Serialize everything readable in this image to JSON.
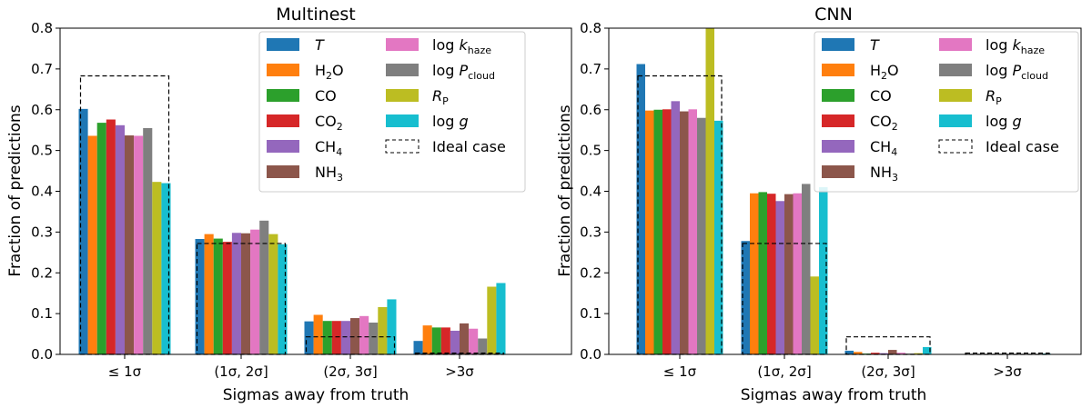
{
  "chart_data": [
    {
      "type": "bar",
      "title": "Multinest",
      "xlabel": "Sigmas away from truth",
      "ylabel": "Fraction of predictions",
      "ylim": [
        0,
        0.8
      ],
      "yticks": [
        "0.0",
        "0.1",
        "0.2",
        "0.3",
        "0.4",
        "0.5",
        "0.6",
        "0.7",
        "0.8"
      ],
      "categories": [
        "≤ 1σ",
        "(1σ, 2σ]",
        "(2σ, 3σ]",
        ">3σ"
      ],
      "legend_position": "top-right",
      "grid": false,
      "series": [
        {
          "name": "T",
          "color": "#1f77b4",
          "values": [
            0.602,
            0.283,
            0.081,
            0.033
          ]
        },
        {
          "name": "H2O",
          "color": "#ff7f0e",
          "values": [
            0.536,
            0.295,
            0.097,
            0.071
          ]
        },
        {
          "name": "CO",
          "color": "#2ca02c",
          "values": [
            0.568,
            0.284,
            0.082,
            0.066
          ]
        },
        {
          "name": "CO2",
          "color": "#d62728",
          "values": [
            0.576,
            0.276,
            0.082,
            0.066
          ]
        },
        {
          "name": "CH4",
          "color": "#9467bd",
          "values": [
            0.562,
            0.298,
            0.082,
            0.058
          ]
        },
        {
          "name": "NH3",
          "color": "#8c564b",
          "values": [
            0.537,
            0.297,
            0.089,
            0.076
          ]
        },
        {
          "name": "log k_haze",
          "color": "#e377c2",
          "values": [
            0.536,
            0.306,
            0.094,
            0.063
          ]
        },
        {
          "name": "log P_cloud",
          "color": "#7f7f7f",
          "values": [
            0.555,
            0.328,
            0.078,
            0.039
          ]
        },
        {
          "name": "R_P",
          "color": "#bcbd22",
          "values": [
            0.423,
            0.295,
            0.116,
            0.166
          ]
        },
        {
          "name": "log g",
          "color": "#17becf",
          "values": [
            0.42,
            0.27,
            0.135,
            0.175
          ]
        }
      ],
      "ideal_case": {
        "name": "Ideal case",
        "values": [
          0.683,
          0.272,
          0.043,
          0.003
        ]
      }
    },
    {
      "type": "bar",
      "title": "CNN",
      "xlabel": "Sigmas away from truth",
      "ylabel": "Fraction of predictions",
      "ylim": [
        0,
        0.8
      ],
      "yticks": [
        "0.0",
        "0.1",
        "0.2",
        "0.3",
        "0.4",
        "0.5",
        "0.6",
        "0.7",
        "0.8"
      ],
      "categories": [
        "≤ 1σ",
        "(1σ, 2σ]",
        "(2σ, 3σ]",
        ">3σ"
      ],
      "legend_position": "top-right",
      "grid": false,
      "series": [
        {
          "name": "T",
          "color": "#1f77b4",
          "values": [
            0.712,
            0.278,
            0.009,
            0.001
          ]
        },
        {
          "name": "H2O",
          "color": "#ff7f0e",
          "values": [
            0.598,
            0.395,
            0.006,
            0.001
          ]
        },
        {
          "name": "CO",
          "color": "#2ca02c",
          "values": [
            0.6,
            0.398,
            0.002,
            0.0
          ]
        },
        {
          "name": "CO2",
          "color": "#d62728",
          "values": [
            0.601,
            0.394,
            0.004,
            0.001
          ]
        },
        {
          "name": "CH4",
          "color": "#9467bd",
          "values": [
            0.621,
            0.376,
            0.003,
            0.0
          ]
        },
        {
          "name": "NH3",
          "color": "#8c564b",
          "values": [
            0.596,
            0.393,
            0.011,
            0.0
          ]
        },
        {
          "name": "log k_haze",
          "color": "#e377c2",
          "values": [
            0.601,
            0.395,
            0.004,
            0.0
          ]
        },
        {
          "name": "log P_cloud",
          "color": "#7f7f7f",
          "values": [
            0.58,
            0.418,
            0.002,
            0.0
          ]
        },
        {
          "name": "R_P",
          "color": "#bcbd22",
          "values": [
            0.806,
            0.191,
            0.003,
            0.0
          ]
        },
        {
          "name": "log g",
          "color": "#17becf",
          "values": [
            0.573,
            0.41,
            0.018,
            0.002
          ]
        }
      ],
      "ideal_case": {
        "name": "Ideal case",
        "values": [
          0.683,
          0.272,
          0.043,
          0.003
        ]
      }
    }
  ]
}
